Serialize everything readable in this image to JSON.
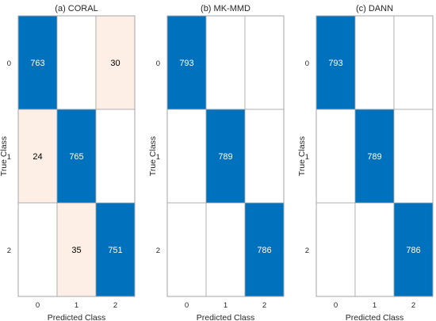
{
  "chart_data": [
    {
      "type": "heatmap",
      "title": "(a) CORAL",
      "xlabel": "Predicted Class",
      "ylabel": "True Class",
      "x_categories": [
        "0",
        "1",
        "2"
      ],
      "y_categories": [
        "0",
        "1",
        "2"
      ],
      "matrix": [
        [
          763,
          null,
          30
        ],
        [
          24,
          765,
          null
        ],
        [
          null,
          35,
          751
        ]
      ]
    },
    {
      "type": "heatmap",
      "title": "(b) MK-MMD",
      "xlabel": "Predicted Class",
      "ylabel": "True Class",
      "x_categories": [
        "0",
        "1",
        "2"
      ],
      "y_categories": [
        "0",
        "1",
        "2"
      ],
      "matrix": [
        [
          793,
          null,
          null
        ],
        [
          null,
          789,
          null
        ],
        [
          null,
          null,
          786
        ]
      ]
    },
    {
      "type": "heatmap",
      "title": "(c) DANN",
      "xlabel": "Predicted Class",
      "ylabel": "True Class",
      "x_categories": [
        "0",
        "1",
        "2"
      ],
      "y_categories": [
        "0",
        "1",
        "2"
      ],
      "matrix": [
        [
          793,
          null,
          null
        ],
        [
          null,
          789,
          null
        ],
        [
          null,
          null,
          786
        ]
      ]
    }
  ],
  "colors": {
    "diagonal": "#0072bd",
    "off_diagonal": "#fdeee6",
    "empty": "#ffffff",
    "grid": "#a6a6a6",
    "diagonal_text": "#ffffff",
    "off_diagonal_text": "#000000"
  }
}
